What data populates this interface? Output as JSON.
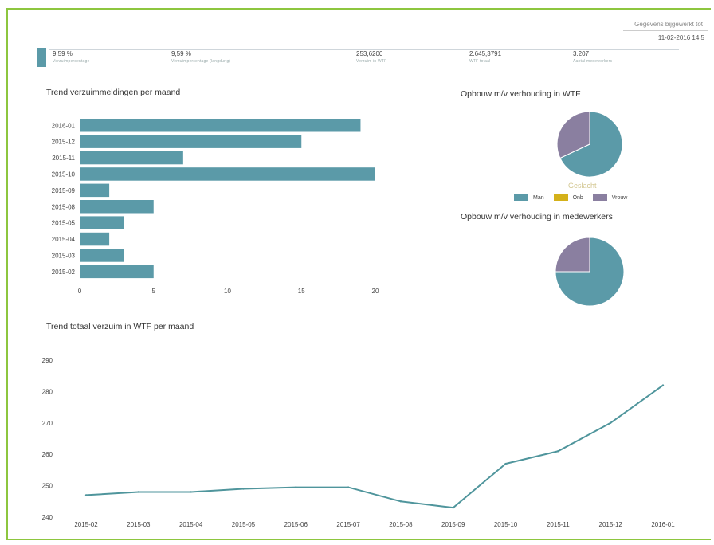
{
  "header": {
    "loaded_label": "Gegevens bijgewerkt tot",
    "loaded_value": "11-02-2016 14:5"
  },
  "kpis": [
    {
      "value": "9,59 %",
      "label": "Verzuimpercentage"
    },
    {
      "value": "9,59 %",
      "label": "Verzuimpercentage (langdurig)"
    },
    {
      "value": "253,6200",
      "label": "Verzuim in WTF"
    },
    {
      "value": "2.645,3791",
      "label": "WTF totaal"
    },
    {
      "value": "3.207",
      "label": "Aantal medewerkers"
    }
  ],
  "titles": {
    "bar": "Trend verzuimmeldingen per maand",
    "pie1": "Opbouw m/v verhouding in WTF",
    "pie2": "Opbouw m/v verhouding in medewerkers",
    "line": "Trend totaal verzuim in WTF per maand"
  },
  "legend": {
    "title": "Geslacht",
    "items": [
      {
        "label": "Man",
        "color": "#5b9aa8"
      },
      {
        "label": "Onb",
        "color": "#d4b11a"
      },
      {
        "label": "Vrouw",
        "color": "#8a7fa0"
      }
    ]
  },
  "chart_data": [
    {
      "type": "bar",
      "orientation": "horizontal",
      "title": "Trend verzuimmeldingen per maand",
      "categories": [
        "2016-01",
        "2015-12",
        "2015-11",
        "2015-10",
        "2015-09",
        "2015-08",
        "2015-05",
        "2015-04",
        "2015-03",
        "2015-02"
      ],
      "values": [
        19,
        15,
        7,
        20,
        2,
        5,
        3,
        2,
        3,
        5
      ],
      "xlim": [
        0,
        20
      ],
      "xticks": [
        0,
        5,
        10,
        15,
        20
      ],
      "color": "#5b9aa8"
    },
    {
      "type": "pie",
      "title": "Opbouw m/v verhouding in WTF",
      "slices": [
        {
          "label": "Man",
          "value": 0.68,
          "color": "#5b9aa8"
        },
        {
          "label": "Vrouw",
          "value": 0.32,
          "color": "#8a7fa0"
        }
      ]
    },
    {
      "type": "pie",
      "title": "Opbouw m/v verhouding in medewerkers",
      "slices": [
        {
          "label": "Man",
          "value": 0.75,
          "color": "#5b9aa8"
        },
        {
          "label": "Vrouw",
          "value": 0.25,
          "color": "#8a7fa0"
        }
      ]
    },
    {
      "type": "line",
      "title": "Trend totaal verzuim in WTF per maand",
      "x": [
        "2015-02",
        "2015-03",
        "2015-04",
        "2015-05",
        "2015-06",
        "2015-07",
        "2015-08",
        "2015-09",
        "2015-10",
        "2015-11",
        "2015-12",
        "2016-01"
      ],
      "values": [
        247,
        248,
        248,
        249,
        249.5,
        249.5,
        245,
        243,
        257,
        261,
        270,
        282
      ],
      "ylim": [
        240,
        290
      ],
      "yticks": [
        240,
        250,
        260,
        270,
        280,
        290
      ],
      "color": "#4f959c"
    }
  ]
}
